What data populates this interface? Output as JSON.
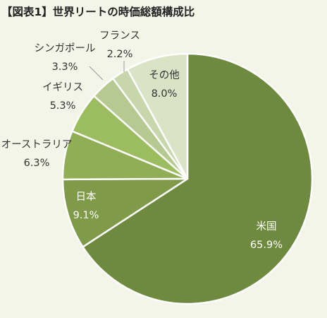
{
  "page": {
    "background": "#f3f5e9"
  },
  "chart_data": {
    "type": "pie",
    "title": "【図表1】世界リートの時価総額構成比",
    "start_angle": "12 o'clock",
    "direction": "clockwise",
    "slices": [
      {
        "label": "米国",
        "value": 65.9,
        "value_label": "65.9%",
        "color": "#6e8a3f",
        "label_position": "inside",
        "text_color": "#ffffff"
      },
      {
        "label": "日本",
        "value": 9.1,
        "value_label": "9.1%",
        "color": "#7f9a48",
        "label_position": "inside",
        "text_color": "#ffffff"
      },
      {
        "label": "オーストラリア",
        "value": 6.3,
        "value_label": "6.3%",
        "color": "#8fae56",
        "label_position": "outside",
        "text_color": "#333333"
      },
      {
        "label": "イギリス",
        "value": 5.3,
        "value_label": "5.3%",
        "color": "#9bbd5f",
        "label_position": "outside",
        "text_color": "#333333"
      },
      {
        "label": "シンガポール",
        "value": 3.3,
        "value_label": "3.3%",
        "color": "#b5c991",
        "label_position": "outside-leader",
        "text_color": "#333333"
      },
      {
        "label": "フランス",
        "value": 2.2,
        "value_label": "2.2%",
        "color": "#c8d7ab",
        "label_position": "outside-leader",
        "text_color": "#333333"
      },
      {
        "label": "その他",
        "value": 8.0,
        "value_label": "8.0%",
        "color": "#dbe3c7",
        "label_position": "inside",
        "text_color": "#333333"
      }
    ]
  }
}
